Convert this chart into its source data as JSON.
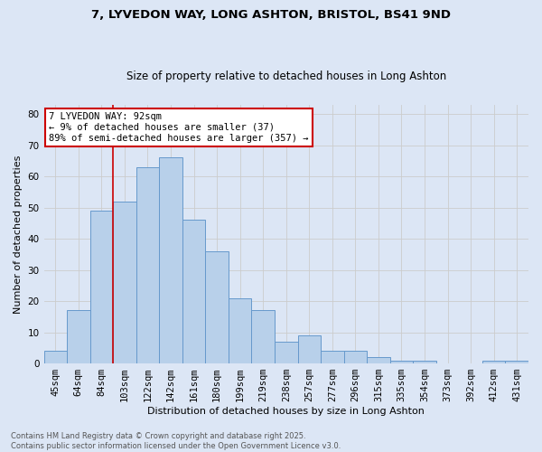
{
  "title1": "7, LYVEDON WAY, LONG ASHTON, BRISTOL, BS41 9ND",
  "title2": "Size of property relative to detached houses in Long Ashton",
  "xlabel": "Distribution of detached houses by size in Long Ashton",
  "ylabel": "Number of detached properties",
  "categories": [
    "45sqm",
    "64sqm",
    "84sqm",
    "103sqm",
    "122sqm",
    "142sqm",
    "161sqm",
    "180sqm",
    "199sqm",
    "219sqm",
    "238sqm",
    "257sqm",
    "277sqm",
    "296sqm",
    "315sqm",
    "335sqm",
    "354sqm",
    "373sqm",
    "392sqm",
    "412sqm",
    "431sqm"
  ],
  "values": [
    4,
    17,
    49,
    52,
    63,
    66,
    46,
    36,
    21,
    17,
    7,
    9,
    4,
    4,
    2,
    1,
    1,
    0,
    0,
    1,
    1
  ],
  "bar_color": "#b8d0ea",
  "bar_edge_color": "#6699cc",
  "vline_color": "#cc0000",
  "vline_index": 2.5,
  "annotation_text": "7 LYVEDON WAY: 92sqm\n← 9% of detached houses are smaller (37)\n89% of semi-detached houses are larger (357) →",
  "annotation_box_color": "#ffffff",
  "annotation_box_edge": "#cc0000",
  "grid_color": "#cccccc",
  "background_color": "#dce6f5",
  "footer": "Contains HM Land Registry data © Crown copyright and database right 2025.\nContains public sector information licensed under the Open Government Licence v3.0.",
  "ylim": [
    0,
    83
  ],
  "yticks": [
    0,
    10,
    20,
    30,
    40,
    50,
    60,
    70,
    80
  ],
  "title1_fontsize": 9.5,
  "title2_fontsize": 8.5,
  "xlabel_fontsize": 8,
  "ylabel_fontsize": 8,
  "tick_fontsize": 7.5,
  "annotation_fontsize": 7.5,
  "footer_fontsize": 6
}
